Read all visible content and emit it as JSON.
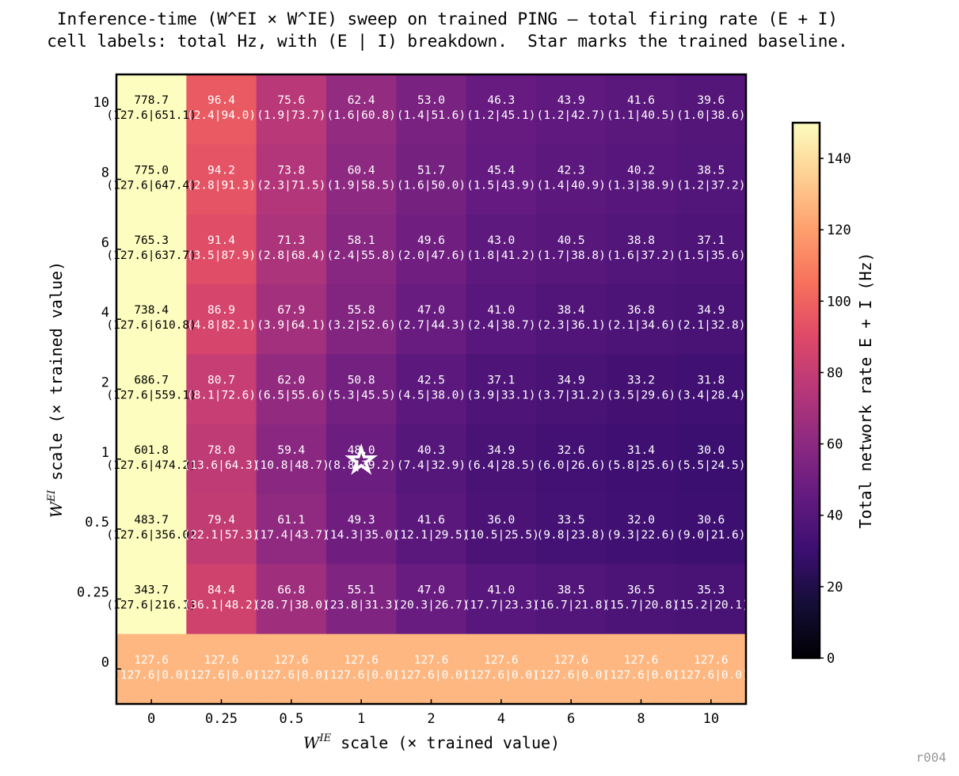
{
  "title_lines": [
    "Inference-time (W^EI × W^IE) sweep on trained PING — total firing rate (E + I)",
    "cell labels: total Hz, with (E | I) breakdown.  Star marks the trained baseline."
  ],
  "footer_tag": "r004",
  "chart_data": {
    "type": "heatmap",
    "xlabel_sym": "W",
    "xlabel_sup": "IE",
    "xlabel_rest": " scale  (× trained value)",
    "ylabel_sym": "W",
    "ylabel_sup": "EI",
    "ylabel_rest": " scale  (× trained value)",
    "x_ticks": [
      "0",
      "0.25",
      "0.5",
      "1",
      "2",
      "4",
      "6",
      "8",
      "10"
    ],
    "y_ticks": [
      "10",
      "8",
      "6",
      "4",
      "2",
      "1",
      "0.5",
      "0.25",
      "0"
    ],
    "colorbar": {
      "label": "Total network rate E + I (Hz)",
      "colormap": "magma",
      "range": [
        0,
        150
      ],
      "ticks": [
        "0",
        "20",
        "40",
        "60",
        "80",
        "100",
        "120",
        "140"
      ]
    },
    "baseline_marker": {
      "x": "1",
      "y": "1",
      "symbol": "☆"
    },
    "rows": [
      {
        "y": "10",
        "total": [
          778.7,
          96.4,
          75.6,
          62.4,
          53.0,
          46.3,
          43.9,
          41.6,
          39.6
        ],
        "e": [
          127.6,
          2.4,
          1.9,
          1.6,
          1.4,
          1.2,
          1.2,
          1.1,
          1.0
        ],
        "i": [
          651.1,
          94.0,
          73.7,
          60.8,
          51.6,
          45.1,
          42.7,
          40.5,
          38.6
        ]
      },
      {
        "y": "8",
        "total": [
          775.0,
          94.2,
          73.8,
          60.4,
          51.7,
          45.4,
          42.3,
          40.2,
          38.5
        ],
        "e": [
          127.6,
          2.8,
          2.3,
          1.9,
          1.6,
          1.5,
          1.4,
          1.3,
          1.2
        ],
        "i": [
          647.4,
          91.3,
          71.5,
          58.5,
          50.0,
          43.9,
          40.9,
          38.9,
          37.2
        ]
      },
      {
        "y": "6",
        "total": [
          765.3,
          91.4,
          71.3,
          58.1,
          49.6,
          43.0,
          40.5,
          38.8,
          37.1
        ],
        "e": [
          127.6,
          3.5,
          2.8,
          2.4,
          2.0,
          1.8,
          1.7,
          1.6,
          1.5
        ],
        "i": [
          637.7,
          87.9,
          68.4,
          55.8,
          47.6,
          41.2,
          38.8,
          37.2,
          35.6
        ]
      },
      {
        "y": "4",
        "total": [
          738.4,
          86.9,
          67.9,
          55.8,
          47.0,
          41.0,
          38.4,
          36.8,
          34.9
        ],
        "e": [
          127.6,
          4.8,
          3.9,
          3.2,
          2.7,
          2.4,
          2.3,
          2.1,
          2.1
        ],
        "i": [
          610.8,
          82.1,
          64.1,
          52.6,
          44.3,
          38.7,
          36.1,
          34.6,
          32.8
        ]
      },
      {
        "y": "2",
        "total": [
          686.7,
          80.7,
          62.0,
          50.8,
          42.5,
          37.1,
          34.9,
          33.2,
          31.8
        ],
        "e": [
          127.6,
          8.1,
          6.5,
          5.3,
          4.5,
          3.9,
          3.7,
          3.5,
          3.4
        ],
        "i": [
          559.1,
          72.6,
          55.6,
          45.5,
          38.0,
          33.1,
          31.2,
          29.6,
          28.4
        ]
      },
      {
        "y": "1",
        "total": [
          601.8,
          78.0,
          59.4,
          48.0,
          40.3,
          34.9,
          32.6,
          31.4,
          30.0
        ],
        "e": [
          127.6,
          13.6,
          10.8,
          8.8,
          7.4,
          6.4,
          6.0,
          5.8,
          5.5
        ],
        "i": [
          474.2,
          64.3,
          48.7,
          39.2,
          32.9,
          28.5,
          26.6,
          25.6,
          24.5
        ]
      },
      {
        "y": "0.5",
        "total": [
          483.7,
          79.4,
          61.1,
          49.3,
          41.6,
          36.0,
          33.5,
          32.0,
          30.6
        ],
        "e": [
          127.6,
          22.1,
          17.4,
          14.3,
          12.1,
          10.5,
          9.8,
          9.3,
          9.0
        ],
        "i": [
          356.0,
          57.3,
          43.7,
          35.0,
          29.5,
          25.5,
          23.8,
          22.6,
          21.6
        ]
      },
      {
        "y": "0.25",
        "total": [
          343.7,
          84.4,
          66.8,
          55.1,
          47.0,
          41.0,
          38.5,
          36.5,
          35.3
        ],
        "e": [
          127.6,
          36.1,
          28.7,
          23.8,
          20.3,
          17.7,
          16.7,
          15.7,
          15.2
        ],
        "i": [
          216.1,
          48.2,
          38.0,
          31.3,
          26.7,
          23.3,
          21.8,
          20.8,
          20.1
        ]
      },
      {
        "y": "0",
        "total": [
          127.6,
          127.6,
          127.6,
          127.6,
          127.6,
          127.6,
          127.6,
          127.6,
          127.6
        ],
        "e": [
          127.6,
          127.6,
          127.6,
          127.6,
          127.6,
          127.6,
          127.6,
          127.6,
          127.6
        ],
        "i": [
          0.0,
          0.0,
          0.0,
          0.0,
          0.0,
          0.0,
          0.0,
          0.0,
          0.0
        ]
      }
    ]
  }
}
